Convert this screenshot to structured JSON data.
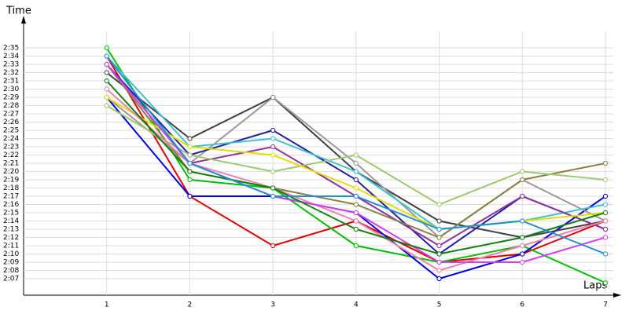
{
  "chart_data": {
    "type": "line",
    "y_label": "Time",
    "x_label": "Laps",
    "x": [
      1,
      2,
      3,
      4,
      5,
      6,
      7
    ],
    "xlim": [
      0,
      7
    ],
    "xticks": [
      1,
      2,
      3,
      4,
      5,
      6,
      7
    ],
    "ylim": [
      125,
      158
    ],
    "yticks": [
      {
        "value": 127,
        "label": "2:07"
      },
      {
        "value": 128,
        "label": "2:08"
      },
      {
        "value": 129,
        "label": "2:09"
      },
      {
        "value": 130,
        "label": "2:10"
      },
      {
        "value": 131,
        "label": "2:11"
      },
      {
        "value": 132,
        "label": "2:12"
      },
      {
        "value": 133,
        "label": "2:13"
      },
      {
        "value": 134,
        "label": "2:14"
      },
      {
        "value": 135,
        "label": "2:15"
      },
      {
        "value": 136,
        "label": "2:16"
      },
      {
        "value": 137,
        "label": "2:17"
      },
      {
        "value": 138,
        "label": "2:18"
      },
      {
        "value": 139,
        "label": "2:19"
      },
      {
        "value": 140,
        "label": "2:20"
      },
      {
        "value": 141,
        "label": "2:21"
      },
      {
        "value": 142,
        "label": "2:22"
      },
      {
        "value": 143,
        "label": "2:23"
      },
      {
        "value": 144,
        "label": "2:24"
      },
      {
        "value": 145,
        "label": "2:25"
      },
      {
        "value": 146,
        "label": "2:26"
      },
      {
        "value": 147,
        "label": "2:27"
      },
      {
        "value": 148,
        "label": "2:28"
      },
      {
        "value": 149,
        "label": "2:29"
      },
      {
        "value": 150,
        "label": "2:30"
      },
      {
        "value": 151,
        "label": "2:31"
      },
      {
        "value": 152,
        "label": "2:32"
      },
      {
        "value": 153,
        "label": "2:33"
      },
      {
        "value": 154,
        "label": "2:34"
      },
      {
        "value": 155,
        "label": "2:35"
      }
    ],
    "grid": true,
    "series": [
      {
        "color": "#e00000",
        "values": [
          154,
          137,
          131,
          134,
          129,
          130,
          134
        ]
      },
      {
        "color": "#00c000",
        "values": [
          155,
          139,
          138,
          131,
          129,
          131,
          126.5
        ]
      },
      {
        "color": "#0000e0",
        "values": [
          149,
          137,
          137,
          135,
          127,
          130,
          137
        ]
      },
      {
        "color": "#404040",
        "values": [
          152,
          144,
          149,
          140,
          134,
          132,
          134
        ]
      },
      {
        "color": "#999999",
        "values": [
          149,
          141,
          149,
          141,
          132,
          139,
          134
        ]
      },
      {
        "color": "#2020a0",
        "values": [
          153,
          142,
          145,
          139,
          130,
          137,
          133
        ]
      },
      {
        "color": "#40c0d0",
        "values": [
          154,
          143,
          144,
          140,
          133,
          134,
          136
        ]
      },
      {
        "color": "#9030a0",
        "values": [
          153,
          141,
          143,
          137,
          131,
          137,
          133
        ]
      },
      {
        "color": "#8a8040",
        "values": [
          153,
          140,
          138,
          136,
          132,
          139,
          141
        ]
      },
      {
        "color": "#a0c870",
        "values": [
          148,
          142,
          140,
          142,
          136,
          140,
          139
        ]
      },
      {
        "color": "#e0e000",
        "values": [
          149,
          143,
          142,
          138,
          133,
          134,
          135
        ]
      },
      {
        "color": "#f080b0",
        "values": [
          150,
          141,
          138,
          134,
          128,
          131,
          134
        ]
      },
      {
        "color": "#d040f0",
        "values": [
          153,
          141,
          137,
          135,
          129,
          129,
          132
        ]
      },
      {
        "color": "#108010",
        "values": [
          151,
          140,
          138,
          133,
          130,
          132,
          135
        ]
      },
      {
        "color": "#2090d0",
        "values": [
          154,
          141,
          137,
          137,
          133,
          134,
          130
        ]
      }
    ]
  }
}
